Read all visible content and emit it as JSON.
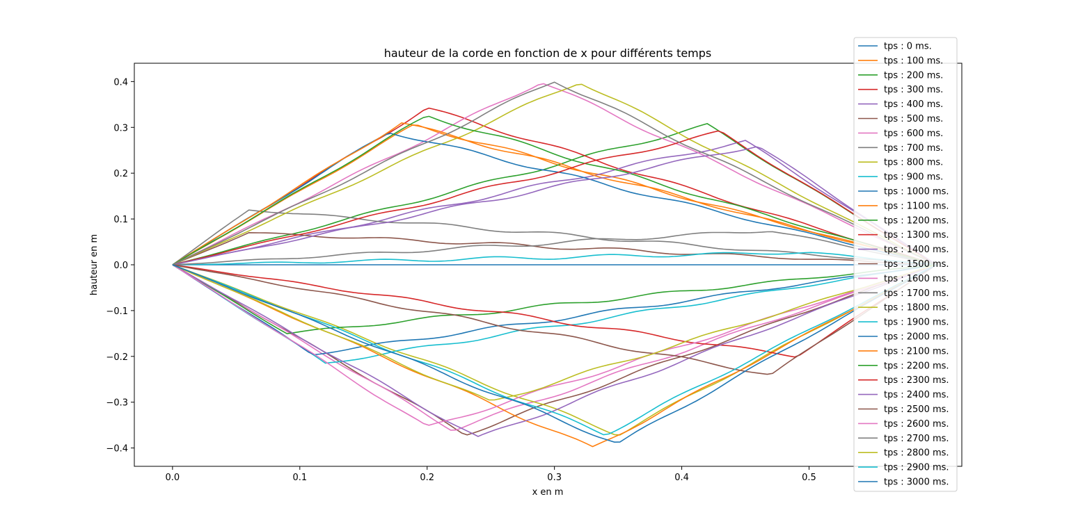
{
  "chart_data": {
    "type": "line",
    "title": "hauteur de la corde en fonction de x pour différents temps",
    "xlabel": "x en m",
    "ylabel": "hauteur en m",
    "xlim": [
      -0.03,
      0.62
    ],
    "ylim": [
      -0.44,
      0.44
    ],
    "x_ticks": [
      "0.0",
      "0.1",
      "0.2",
      "0.3",
      "0.4",
      "0.5"
    ],
    "y_ticks": [
      "−0.4",
      "−0.3",
      "−0.2",
      "−0.1",
      "0.0",
      "0.1",
      "0.2",
      "0.3",
      "0.4"
    ],
    "grid": false,
    "legend_position": "upper-right",
    "x_range": [
      0,
      0.6
    ],
    "series": [
      {
        "name": "tps : 0 ms.",
        "color": "#1f77b4",
        "peak_x": 0.3,
        "peak_y": 0.0
      },
      {
        "name": "tps : 100 ms.",
        "color": "#ff7f0e",
        "peak_x": 0.19,
        "peak_y": 0.305
      },
      {
        "name": "tps : 200 ms.",
        "color": "#2ca02c",
        "peak_x": 0.42,
        "peak_y": 0.305
      },
      {
        "name": "tps : 300 ms.",
        "color": "#d62728",
        "peak_x": 0.2,
        "peak_y": 0.342
      },
      {
        "name": "tps : 400 ms.",
        "color": "#9467bd",
        "peak_x": 0.45,
        "peak_y": 0.27
      },
      {
        "name": "tps : 500 ms.",
        "color": "#8c564b",
        "peak_x": 0.06,
        "peak_y": 0.07
      },
      {
        "name": "tps : 600 ms.",
        "color": "#e377c2",
        "peak_x": 0.29,
        "peak_y": 0.4
      },
      {
        "name": "tps : 700 ms.",
        "color": "#7f7f7f",
        "peak_x": 0.06,
        "peak_y": 0.12
      },
      {
        "name": "tps : 800 ms.",
        "color": "#bcbd22",
        "peak_x": 0.32,
        "peak_y": 0.4
      },
      {
        "name": "tps : 900 ms.",
        "color": "#17becf",
        "peak_x": 0.5,
        "peak_y": 0.027
      },
      {
        "name": "tps : 1000 ms.",
        "color": "#1f77b4",
        "peak_x": 0.17,
        "peak_y": 0.29
      },
      {
        "name": "tps : 1100 ms.",
        "color": "#ff7f0e",
        "peak_x": 0.18,
        "peak_y": 0.31
      },
      {
        "name": "tps : 1200 ms.",
        "color": "#2ca02c",
        "peak_x": 0.2,
        "peak_y": 0.325
      },
      {
        "name": "tps : 1300 ms.",
        "color": "#d62728",
        "peak_x": 0.43,
        "peak_y": 0.29
      },
      {
        "name": "tps : 1400 ms.",
        "color": "#9467bd",
        "peak_x": 0.46,
        "peak_y": 0.26
      },
      {
        "name": "tps : 1500 ms.",
        "color": "#8c564b",
        "peak_x": 0.23,
        "peak_y": -0.37
      },
      {
        "name": "tps : 1600 ms.",
        "color": "#e377c2",
        "peak_x": 0.22,
        "peak_y": -0.36
      },
      {
        "name": "tps : 1700 ms.",
        "color": "#7f7f7f",
        "peak_x": 0.47,
        "peak_y": 0.075
      },
      {
        "name": "tps : 1800 ms.",
        "color": "#bcbd22",
        "peak_x": 0.35,
        "peak_y": -0.37
      },
      {
        "name": "tps : 1900 ms.",
        "color": "#17becf",
        "peak_x": 0.12,
        "peak_y": -0.215
      },
      {
        "name": "tps : 2000 ms.",
        "color": "#1f77b4",
        "peak_x": 0.11,
        "peak_y": -0.195
      },
      {
        "name": "tps : 2100 ms.",
        "color": "#ff7f0e",
        "peak_x": 0.33,
        "peak_y": -0.4
      },
      {
        "name": "tps : 2200 ms.",
        "color": "#2ca02c",
        "peak_x": 0.09,
        "peak_y": -0.15
      },
      {
        "name": "tps : 2300 ms.",
        "color": "#d62728",
        "peak_x": 0.49,
        "peak_y": -0.2
      },
      {
        "name": "tps : 2400 ms.",
        "color": "#9467bd",
        "peak_x": 0.24,
        "peak_y": -0.378
      },
      {
        "name": "tps : 2500 ms.",
        "color": "#8c564b",
        "peak_x": 0.47,
        "peak_y": -0.24
      },
      {
        "name": "tps : 2600 ms.",
        "color": "#e377c2",
        "peak_x": 0.2,
        "peak_y": -0.355
      },
      {
        "name": "tps : 2700 ms.",
        "color": "#7f7f7f",
        "peak_x": 0.3,
        "peak_y": 0.402
      },
      {
        "name": "tps : 2800 ms.",
        "color": "#bcbd22",
        "peak_x": 0.25,
        "peak_y": -0.3
      },
      {
        "name": "tps : 2900 ms.",
        "color": "#17becf",
        "peak_x": 0.34,
        "peak_y": -0.37
      },
      {
        "name": "tps : 3000 ms.",
        "color": "#1f77b4",
        "peak_x": 0.35,
        "peak_y": -0.39
      }
    ]
  }
}
